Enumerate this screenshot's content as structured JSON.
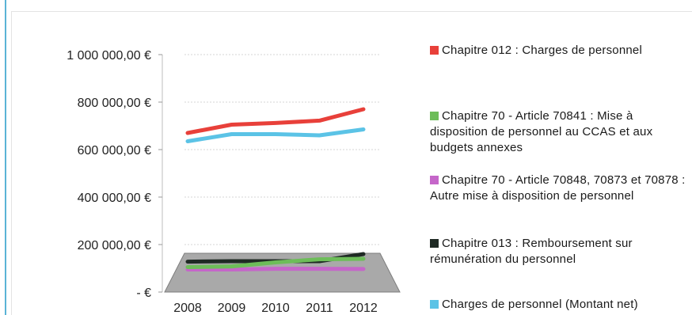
{
  "chart_data": {
    "type": "line",
    "title": "",
    "xlabel": "",
    "ylabel": "",
    "categories": [
      "2008",
      "2009",
      "2010",
      "2011",
      "2012"
    ],
    "ylim": [
      0,
      1000000
    ],
    "y_ticks": [
      {
        "value": 1000000,
        "label": "1 000 000,00 €"
      },
      {
        "value": 800000,
        "label": "800 000,00 €"
      },
      {
        "value": 600000,
        "label": "600 000,00 €"
      },
      {
        "value": 400000,
        "label": "400 000,00 €"
      },
      {
        "value": 200000,
        "label": "200 000,00 €"
      },
      {
        "value": 0,
        "label": "-     €"
      }
    ],
    "grid": true,
    "legend_position": "right",
    "series": [
      {
        "name": "Chapitre 012 : Charges de personnel",
        "color": "#e8403a",
        "values": [
          670000,
          705000,
          712000,
          722000,
          770000
        ]
      },
      {
        "name": "Chapitre 70 - Article 70841 : Mise à disposition de personnel au CCAS et aux budgets annexes",
        "color": "#6dbd59",
        "values": [
          105000,
          108000,
          125000,
          138000,
          140000
        ]
      },
      {
        "name": "Chapitre 70 - Article 70848, 70873 et 70878  : Autre mise à disposition de personnel",
        "color": "#c566c9",
        "values": [
          95000,
          95000,
          98000,
          98000,
          97000
        ]
      },
      {
        "name": "Chapitre 013 : Remboursement sur rémunération du personnel",
        "color": "#1f2a24",
        "values": [
          128000,
          130000,
          130000,
          130000,
          160000
        ]
      },
      {
        "name": "Charges de personnel (Montant net)",
        "color": "#5bc3e6",
        "values": [
          635000,
          665000,
          665000,
          660000,
          685000
        ]
      }
    ]
  }
}
